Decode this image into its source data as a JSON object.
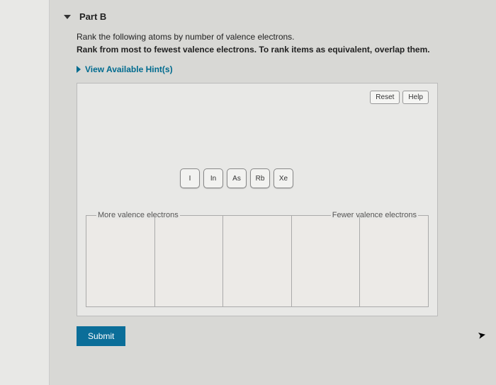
{
  "part": {
    "title": "Part B"
  },
  "question": {
    "line1": "Rank the following atoms by number of valence electrons.",
    "line2": "Rank from most to fewest valence electrons. To rank items as equivalent, overlap them."
  },
  "hints": {
    "label": "View Available Hint(s)"
  },
  "workspace": {
    "reset_label": "Reset",
    "help_label": "Help",
    "tiles": [
      "I",
      "In",
      "As",
      "Rb",
      "Xe"
    ],
    "rank_left_label": "More valence electrons",
    "rank_right_label": "Fewer valence electrons",
    "num_columns": 5
  },
  "submit": {
    "label": "Submit"
  },
  "colors": {
    "page_bg": "#d8d8d5",
    "panel_bg": "#e8e8e6",
    "border": "#bbb",
    "accent": "#006b8f",
    "submit_bg": "#0b6e99",
    "text": "#222"
  }
}
